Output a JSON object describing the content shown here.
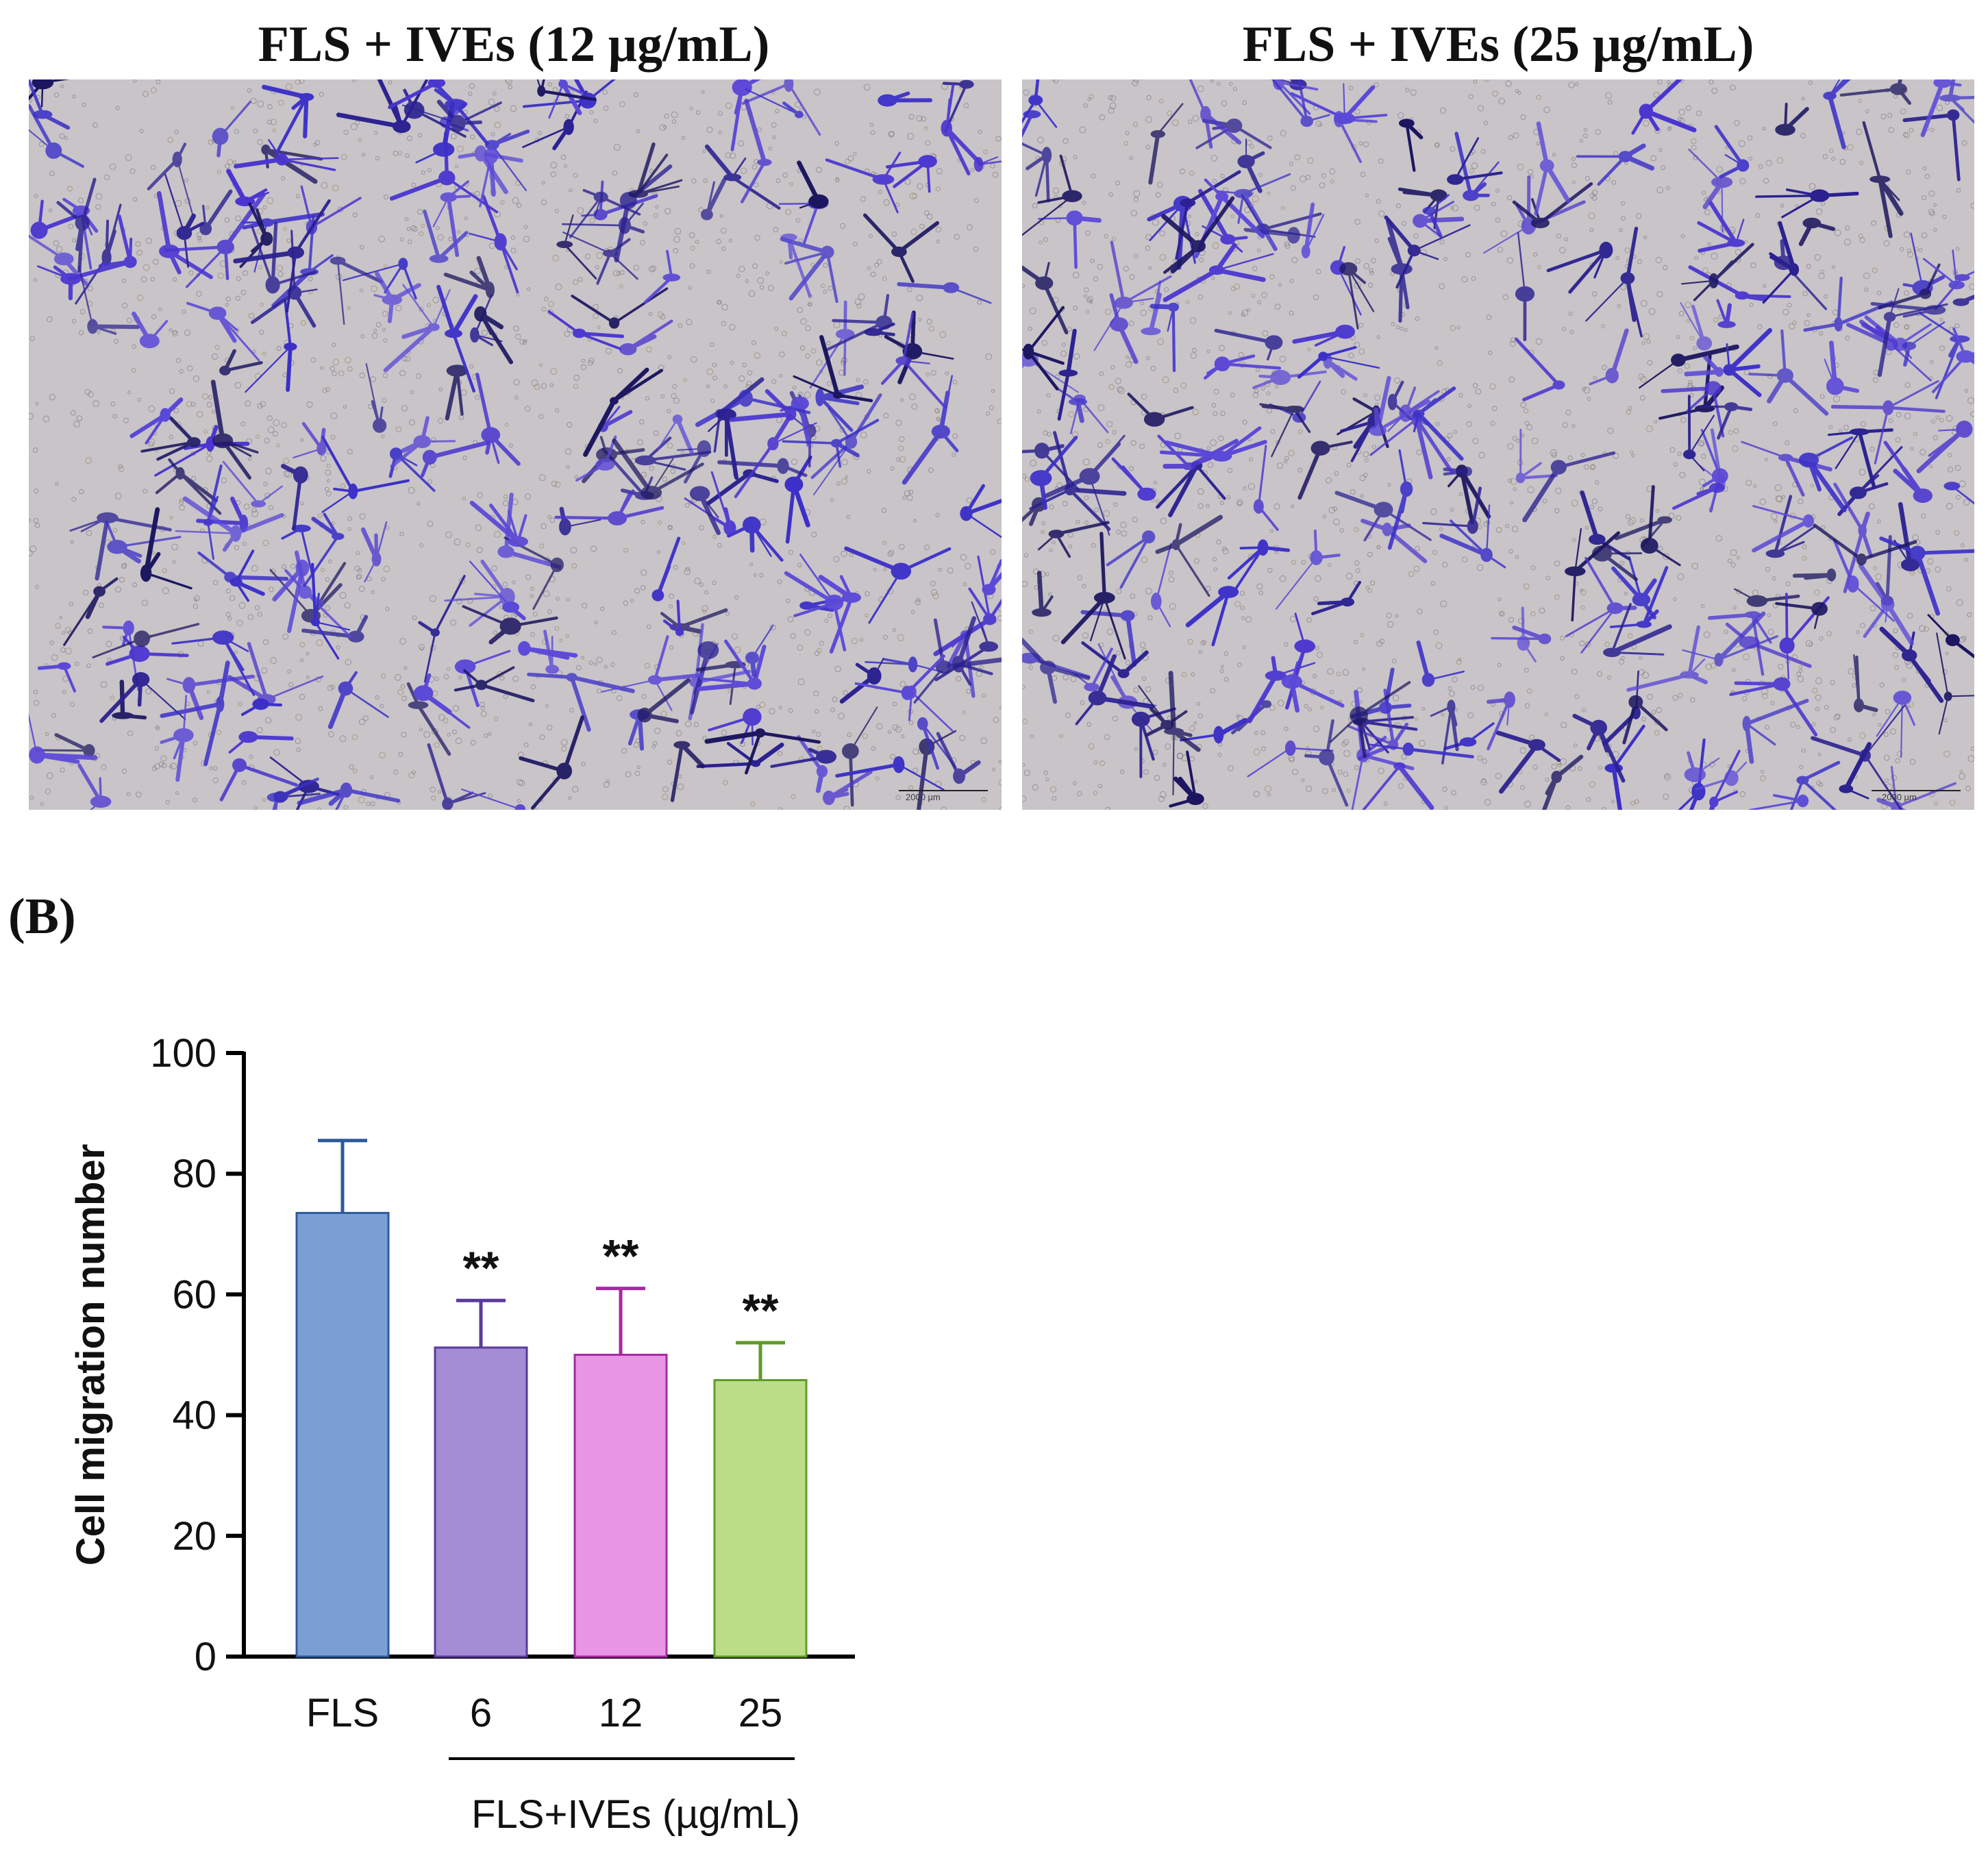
{
  "panels": [
    {
      "title": "FLS + IVEs (12 µg/mL)",
      "scale_label": "2000 µm"
    },
    {
      "title": "FLS + IVEs (25 µg/mL)",
      "scale_label": "2000 µm"
    }
  ],
  "panel_letter": "(B)",
  "chart_data": {
    "type": "bar",
    "categories": [
      "FLS",
      "6",
      "12",
      "25"
    ],
    "values": [
      73.5,
      51.2,
      50.0,
      45.8
    ],
    "errors": [
      12.0,
      7.8,
      11.0,
      6.2
    ],
    "significance": [
      "",
      "**",
      "**",
      "**"
    ],
    "bar_colors": [
      "#7b9fd4",
      "#a48cd5",
      "#e895e6",
      "#bbdd88"
    ],
    "error_colors": [
      "#2d5a9a",
      "#5a3a9a",
      "#a52aa0",
      "#5f9a2a"
    ],
    "ylabel": "Cell migration number",
    "xlabel": "",
    "group_label": "FLS+IVEs (µg/mL)",
    "ylim": [
      0,
      100
    ],
    "yticks": [
      0,
      20,
      40,
      60,
      80,
      100
    ],
    "grid": false
  }
}
